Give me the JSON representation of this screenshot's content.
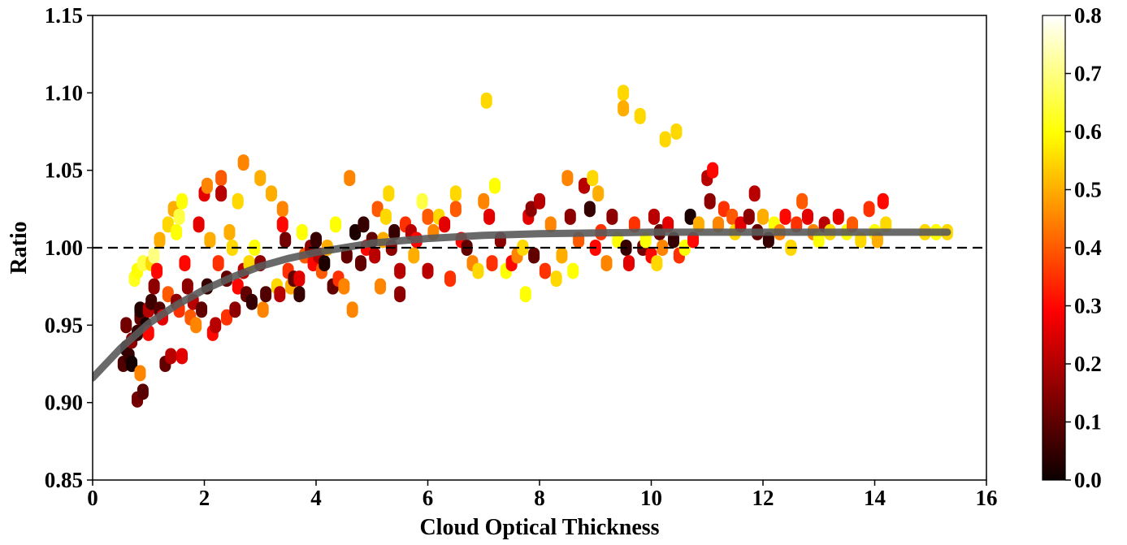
{
  "chart_data": {
    "type": "scatter",
    "xlabel": "Cloud Optical Thickness",
    "ylabel": "Ratio",
    "xlim": [
      0,
      16
    ],
    "ylim": [
      0.85,
      1.15
    ],
    "xticks": [
      "0",
      "2",
      "4",
      "6",
      "8",
      "10",
      "12",
      "14",
      "16"
    ],
    "yticks": [
      "0.85",
      "0.90",
      "0.95",
      "1.00",
      "1.05",
      "1.10",
      "1.15"
    ],
    "grid": false,
    "reference_line": {
      "y": 1.0,
      "style": "dashed",
      "color": "#000000"
    },
    "fit_curve": {
      "color": "#5a5a5a",
      "points": [
        [
          0,
          0.916
        ],
        [
          0.5,
          0.935
        ],
        [
          1,
          0.951
        ],
        [
          1.5,
          0.963
        ],
        [
          2,
          0.973
        ],
        [
          2.5,
          0.981
        ],
        [
          3,
          0.988
        ],
        [
          3.5,
          0.993
        ],
        [
          4,
          0.997
        ],
        [
          4.5,
          1.0
        ],
        [
          5,
          1.003
        ],
        [
          6,
          1.006
        ],
        [
          7,
          1.008
        ],
        [
          8,
          1.009
        ],
        [
          10,
          1.01
        ],
        [
          12,
          1.01
        ],
        [
          14,
          1.01
        ],
        [
          15.3,
          1.01
        ]
      ]
    },
    "colorbar": {
      "colormap": "hot",
      "range": [
        0.0,
        0.8
      ],
      "ticks": [
        "0.0",
        "0.1",
        "0.2",
        "0.3",
        "0.4",
        "0.5",
        "0.6",
        "0.7",
        "0.8"
      ]
    },
    "series": [
      {
        "points": [
          [
            0.55,
            0.925,
            0.08
          ],
          [
            0.6,
            0.935,
            0.02
          ],
          [
            0.6,
            0.95,
            0.12
          ],
          [
            0.65,
            0.93,
            0.05
          ],
          [
            0.7,
            0.94,
            0.15
          ],
          [
            0.7,
            0.925,
            0.01
          ],
          [
            0.75,
            0.98,
            0.62
          ],
          [
            0.8,
            0.985,
            0.6
          ],
          [
            0.8,
            0.945,
            0.05
          ],
          [
            0.85,
            0.955,
            0.1
          ],
          [
            0.85,
            0.96,
            0.03
          ],
          [
            0.8,
            0.902,
            0.12
          ],
          [
            0.9,
            0.907,
            0.09
          ],
          [
            0.85,
            0.919,
            0.45
          ],
          [
            0.9,
            0.99,
            0.65
          ],
          [
            0.95,
            0.95,
            0.02
          ],
          [
            1.0,
            0.96,
            0.2
          ],
          [
            1.0,
            0.945,
            0.3
          ],
          [
            1.05,
            0.965,
            0.06
          ],
          [
            1.05,
            0.99,
            0.55
          ],
          [
            1.1,
            0.995,
            0.7
          ],
          [
            1.1,
            0.975,
            0.15
          ],
          [
            1.15,
            0.985,
            0.3
          ],
          [
            1.2,
            0.96,
            0.08
          ],
          [
            1.2,
            1.005,
            0.5
          ],
          [
            1.25,
            0.955,
            0.25
          ],
          [
            1.3,
            0.925,
            0.1
          ],
          [
            1.35,
            0.97,
            0.4
          ],
          [
            1.35,
            1.015,
            0.55
          ],
          [
            1.4,
            0.93,
            0.2
          ],
          [
            1.45,
            1.025,
            0.5
          ],
          [
            1.5,
            1.01,
            0.6
          ],
          [
            1.5,
            0.965,
            0.15
          ],
          [
            1.55,
            1.02,
            0.65
          ],
          [
            1.55,
            0.96,
            0.35
          ],
          [
            1.6,
            1.03,
            0.6
          ],
          [
            1.6,
            0.93,
            0.25
          ],
          [
            1.65,
            0.99,
            0.3
          ],
          [
            1.7,
            0.975,
            0.15
          ],
          [
            1.75,
            0.955,
            0.4
          ],
          [
            1.8,
            0.965,
            0.2
          ],
          [
            1.85,
            0.95,
            0.45
          ],
          [
            1.9,
            1.015,
            0.25
          ],
          [
            1.95,
            0.96,
            0.1
          ],
          [
            2.0,
            1.035,
            0.25
          ],
          [
            2.05,
            1.04,
            0.45
          ],
          [
            2.05,
            0.975,
            0.05
          ],
          [
            2.1,
            1.005,
            0.5
          ],
          [
            2.15,
            0.945,
            0.3
          ],
          [
            2.2,
            0.95,
            0.2
          ],
          [
            2.25,
            0.99,
            0.35
          ],
          [
            2.3,
            1.045,
            0.4
          ],
          [
            2.3,
            1.035,
            0.2
          ],
          [
            2.4,
            0.955,
            0.35
          ],
          [
            2.4,
            0.98,
            0.1
          ],
          [
            2.45,
            1.01,
            0.5
          ],
          [
            2.5,
            1.0,
            0.55
          ],
          [
            2.55,
            0.96,
            0.15
          ],
          [
            2.6,
            1.03,
            0.55
          ],
          [
            2.6,
            0.975,
            0.3
          ],
          [
            2.7,
            1.055,
            0.45
          ],
          [
            2.7,
            0.985,
            0.2
          ],
          [
            2.75,
            0.97,
            0.1
          ],
          [
            2.8,
            0.99,
            0.55
          ],
          [
            2.85,
            0.965,
            0.05
          ],
          [
            2.9,
            1.0,
            0.6
          ],
          [
            3.0,
            1.045,
            0.5
          ],
          [
            3.0,
            0.99,
            0.15
          ],
          [
            3.05,
            0.96,
            0.45
          ],
          [
            3.1,
            0.97,
            0.08
          ],
          [
            3.2,
            1.035,
            0.5
          ],
          [
            3.3,
            0.975,
            0.55
          ],
          [
            3.35,
            0.97,
            0.2
          ],
          [
            3.4,
            1.025,
            0.45
          ],
          [
            3.4,
            1.015,
            0.3
          ],
          [
            3.45,
            1.005,
            0.12
          ],
          [
            3.5,
            0.985,
            0.35
          ],
          [
            3.55,
            0.975,
            0.5
          ],
          [
            3.6,
            0.98,
            0.1
          ],
          [
            3.7,
            0.98,
            0.25
          ],
          [
            3.7,
            0.97,
            0.05
          ],
          [
            3.75,
            1.01,
            0.6
          ],
          [
            3.8,
            0.995,
            0.4
          ],
          [
            3.9,
            1.0,
            0.15
          ],
          [
            3.95,
            0.99,
            0.3
          ],
          [
            4.0,
            1.005,
            0.05
          ],
          [
            4.05,
            0.995,
            0.2
          ],
          [
            4.1,
            0.985,
            0.4
          ],
          [
            4.15,
            0.99,
            0.02
          ],
          [
            4.2,
            1.0,
            0.5
          ],
          [
            4.3,
            0.975,
            0.1
          ],
          [
            4.35,
            1.015,
            0.6
          ],
          [
            4.4,
            0.98,
            0.35
          ],
          [
            4.5,
            0.975,
            0.45
          ],
          [
            4.55,
            0.995,
            0.1
          ],
          [
            4.6,
            1.045,
            0.45
          ],
          [
            4.65,
            0.96,
            0.45
          ],
          [
            4.7,
            1.01,
            0.02
          ],
          [
            4.8,
            0.99,
            0.1
          ],
          [
            4.85,
            1.015,
            0.05
          ],
          [
            4.9,
            1.0,
            0.3
          ],
          [
            5.0,
            1.005,
            0.1
          ],
          [
            5.05,
            0.995,
            0.2
          ],
          [
            5.1,
            1.025,
            0.4
          ],
          [
            5.15,
            0.975,
            0.45
          ],
          [
            5.2,
            1.005,
            0.5
          ],
          [
            5.25,
            1.02,
            0.55
          ],
          [
            5.3,
            1.035,
            0.55
          ],
          [
            5.35,
            1.0,
            0.15
          ],
          [
            5.4,
            1.01,
            0.05
          ],
          [
            5.5,
            0.97,
            0.15
          ],
          [
            5.5,
            0.985,
            0.2
          ],
          [
            5.6,
            1.015,
            0.35
          ],
          [
            5.7,
            1.01,
            0.2
          ],
          [
            5.75,
            0.995,
            0.5
          ],
          [
            5.8,
            1.005,
            0.3
          ],
          [
            5.9,
            1.03,
            0.65
          ],
          [
            6.0,
            0.985,
            0.2
          ],
          [
            6.0,
            1.02,
            0.4
          ],
          [
            6.1,
            1.01,
            0.45
          ],
          [
            6.2,
            1.02,
            0.55
          ],
          [
            6.3,
            1.015,
            0.25
          ],
          [
            6.4,
            0.98,
            0.35
          ],
          [
            6.5,
            1.035,
            0.55
          ],
          [
            6.5,
            1.025,
            0.4
          ],
          [
            6.6,
            1.005,
            0.3
          ],
          [
            6.7,
            1.0,
            0.1
          ],
          [
            6.8,
            0.99,
            0.45
          ],
          [
            6.9,
            0.985,
            0.55
          ],
          [
            7.0,
            1.03,
            0.45
          ],
          [
            7.05,
            1.095,
            0.55
          ],
          [
            7.1,
            1.02,
            0.25
          ],
          [
            7.15,
            0.99,
            0.35
          ],
          [
            7.2,
            1.04,
            0.6
          ],
          [
            7.3,
            1.005,
            0.15
          ],
          [
            7.4,
            0.985,
            0.6
          ],
          [
            7.5,
            0.99,
            0.3
          ],
          [
            7.6,
            0.995,
            0.45
          ],
          [
            7.7,
            1.0,
            0.55
          ],
          [
            7.75,
            0.97,
            0.6
          ],
          [
            7.8,
            1.02,
            0.25
          ],
          [
            7.85,
            1.025,
            0.15
          ],
          [
            7.9,
            0.995,
            0.1
          ],
          [
            8.0,
            1.03,
            0.2
          ],
          [
            8.1,
            0.985,
            0.35
          ],
          [
            8.2,
            1.015,
            0.45
          ],
          [
            8.3,
            0.98,
            0.55
          ],
          [
            8.4,
            0.995,
            0.5
          ],
          [
            8.5,
            1.045,
            0.45
          ],
          [
            8.55,
            1.02,
            0.15
          ],
          [
            8.6,
            0.985,
            0.6
          ],
          [
            8.7,
            1.005,
            0.4
          ],
          [
            8.8,
            1.04,
            0.2
          ],
          [
            8.9,
            1.025,
            0.05
          ],
          [
            8.95,
            1.045,
            0.55
          ],
          [
            9.0,
            1.0,
            0.3
          ],
          [
            9.05,
            1.035,
            0.5
          ],
          [
            9.1,
            1.01,
            0.35
          ],
          [
            9.2,
            0.99,
            0.45
          ],
          [
            9.3,
            1.02,
            0.15
          ],
          [
            9.4,
            1.005,
            0.6
          ],
          [
            9.5,
            1.1,
            0.55
          ],
          [
            9.5,
            1.09,
            0.5
          ],
          [
            9.55,
            1.0,
            0.05
          ],
          [
            9.6,
            0.99,
            0.25
          ],
          [
            9.7,
            1.015,
            0.35
          ],
          [
            9.8,
            1.085,
            0.55
          ],
          [
            9.85,
            1.0,
            0.12
          ],
          [
            9.9,
            1.005,
            0.6
          ],
          [
            10.0,
            0.995,
            0.3
          ],
          [
            10.05,
            1.02,
            0.2
          ],
          [
            10.1,
            0.99,
            0.55
          ],
          [
            10.15,
            1.01,
            0.1
          ],
          [
            10.2,
            1.0,
            0.45
          ],
          [
            10.25,
            1.07,
            0.55
          ],
          [
            10.3,
            1.015,
            0.25
          ],
          [
            10.4,
            1.005,
            0.05
          ],
          [
            10.45,
            1.075,
            0.55
          ],
          [
            10.5,
            0.995,
            0.35
          ],
          [
            10.6,
            1.0,
            0.6
          ],
          [
            10.7,
            1.02,
            0.02
          ],
          [
            10.75,
            1.005,
            0.3
          ],
          [
            10.85,
            1.015,
            0.5
          ],
          [
            11.0,
            1.045,
            0.2
          ],
          [
            11.05,
            1.03,
            0.15
          ],
          [
            11.1,
            1.05,
            0.3
          ],
          [
            11.2,
            1.015,
            0.45
          ],
          [
            11.3,
            1.025,
            0.35
          ],
          [
            11.45,
            1.02,
            0.4
          ],
          [
            11.5,
            1.01,
            0.55
          ],
          [
            11.6,
            1.015,
            0.25
          ],
          [
            11.75,
            1.02,
            0.15
          ],
          [
            11.85,
            1.035,
            0.2
          ],
          [
            11.9,
            1.01,
            0.1
          ],
          [
            12.0,
            1.02,
            0.5
          ],
          [
            12.1,
            1.005,
            0.05
          ],
          [
            12.2,
            1.015,
            0.6
          ],
          [
            12.3,
            1.01,
            0.45
          ],
          [
            12.4,
            1.02,
            0.3
          ],
          [
            12.5,
            1.0,
            0.55
          ],
          [
            12.6,
            1.015,
            0.35
          ],
          [
            12.7,
            1.03,
            0.4
          ],
          [
            12.8,
            1.02,
            0.25
          ],
          [
            12.9,
            1.01,
            0.45
          ],
          [
            13.0,
            1.005,
            0.6
          ],
          [
            13.1,
            1.015,
            0.2
          ],
          [
            13.2,
            1.01,
            0.55
          ],
          [
            13.35,
            1.02,
            0.25
          ],
          [
            13.5,
            1.01,
            0.6
          ],
          [
            13.6,
            1.015,
            0.4
          ],
          [
            13.75,
            1.005,
            0.55
          ],
          [
            13.9,
            1.025,
            0.35
          ],
          [
            14.0,
            1.01,
            0.6
          ],
          [
            14.05,
            1.005,
            0.5
          ],
          [
            14.15,
            1.03,
            0.3
          ],
          [
            14.2,
            1.015,
            0.55
          ],
          [
            14.9,
            1.01,
            0.55
          ],
          [
            15.1,
            1.01,
            0.6
          ],
          [
            15.3,
            1.01,
            0.55
          ]
        ]
      }
    ]
  }
}
